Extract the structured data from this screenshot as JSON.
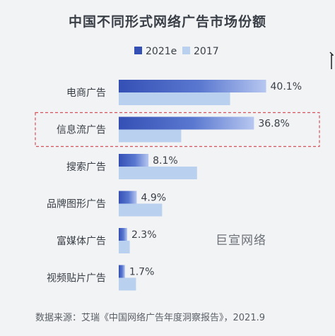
{
  "title": "中国不同形式网络广告市场份额",
  "legend": [
    "2021e",
    "2017"
  ],
  "watermark": "巨宣网络",
  "source": "数据来源：艾瑞《中国网络广告年度洞察报告》，2021.9",
  "colors": {
    "series_2021e_start": "#3550b5",
    "series_2021e_end": "#b7c7f0",
    "series_2017": "#b9d0ef",
    "highlight_border": "#d9505a"
  },
  "chart_data": {
    "type": "bar",
    "orientation": "horizontal",
    "title": "中国不同形式网络广告市场份额",
    "categories": [
      "电商广告",
      "信息流广告",
      "搜索广告",
      "品牌图形广告",
      "富媒体广告",
      "视频贴片广告"
    ],
    "series": [
      {
        "name": "2021e",
        "values": [
          40.1,
          36.8,
          8.1,
          4.9,
          2.3,
          1.7
        ],
        "labels": [
          "40.1%",
          "36.8%",
          "8.1%",
          "4.9%",
          "2.3%",
          "1.7%"
        ]
      },
      {
        "name": "2017",
        "values": [
          30.3,
          17.0,
          21.3,
          11.8,
          3.0,
          4.7
        ]
      }
    ],
    "unit": "%",
    "xlim": [
      0,
      45
    ],
    "highlighted_category": "信息流广告",
    "legend_position": "top-center"
  }
}
